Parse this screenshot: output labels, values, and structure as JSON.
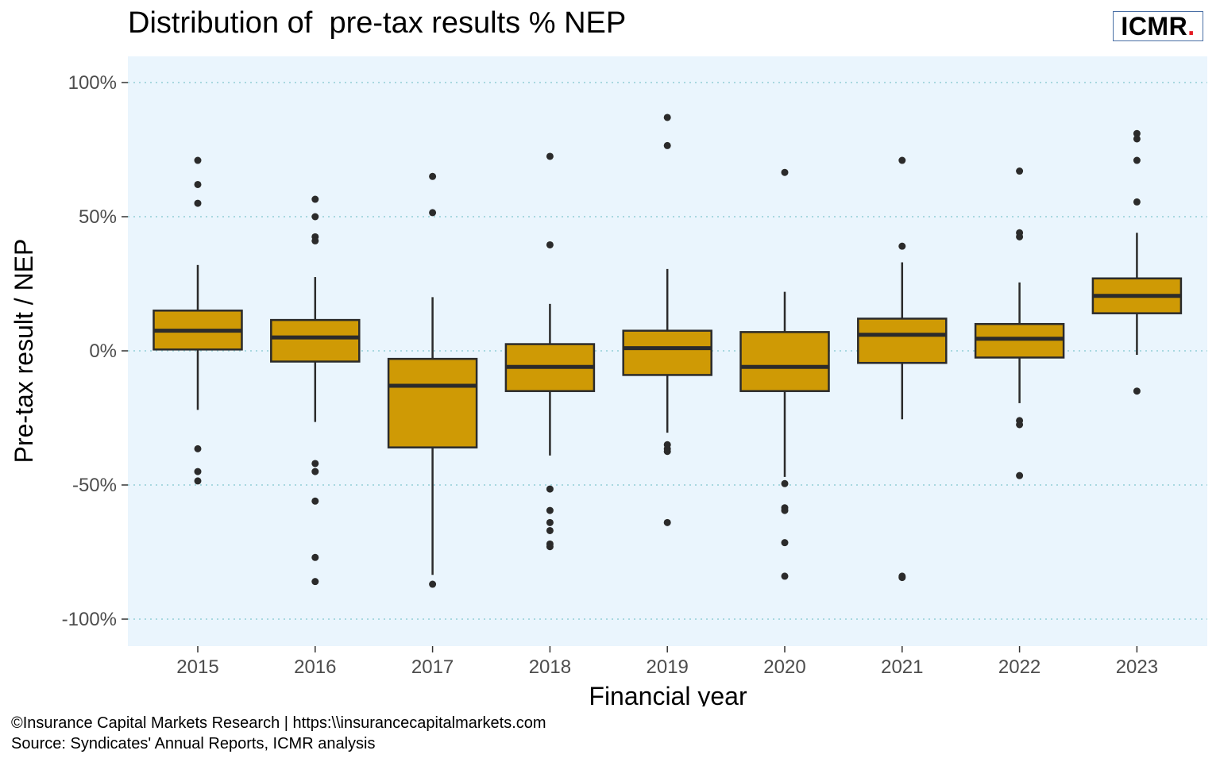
{
  "title": "Distribution of  pre-tax results % NEP",
  "logo": {
    "text": "ICMR",
    "dot": "."
  },
  "footer": {
    "line1": "©Insurance Capital Markets Research | https:\\\\insurancecapitalmarkets.com",
    "line2": "Source: Syndicates' Annual Reports, ICMR analysis"
  },
  "colors": {
    "panel": "#eaf5fd",
    "grid": "#a8d8e0",
    "box_fill": "#cf9a05",
    "box_stroke": "#2b2b2b",
    "logo_dot": "#e31b23"
  },
  "chart_data": {
    "type": "boxplot",
    "xlabel": "Financial year",
    "ylabel": "Pre-tax result / NEP",
    "ylim": [
      -110,
      110
    ],
    "yticks": [
      -100,
      -50,
      0,
      50,
      100
    ],
    "ytick_labels": [
      "-100%",
      "-50%",
      "0%",
      "50%",
      "100%"
    ],
    "grid": "horizontal dotted",
    "categories": [
      "2015",
      "2016",
      "2017",
      "2018",
      "2019",
      "2020",
      "2021",
      "2022",
      "2023"
    ],
    "boxes": [
      {
        "year": "2015",
        "whisker_low": -22,
        "q1": 0.5,
        "median": 7.5,
        "q3": 15,
        "whisker_high": 32,
        "outliers": [
          71,
          62,
          55,
          -36.5,
          -45,
          -48.5
        ]
      },
      {
        "year": "2016",
        "whisker_low": -26.5,
        "q1": -4,
        "median": 5,
        "q3": 11.5,
        "whisker_high": 27.5,
        "outliers": [
          56.5,
          50,
          42.5,
          41,
          -42,
          -45,
          -56,
          -77,
          -86
        ]
      },
      {
        "year": "2017",
        "whisker_low": -83.5,
        "q1": -36,
        "median": -13,
        "q3": -3,
        "whisker_high": 20,
        "outliers": [
          65,
          51.5,
          -87
        ]
      },
      {
        "year": "2018",
        "whisker_low": -39,
        "q1": -15,
        "median": -6,
        "q3": 2.5,
        "whisker_high": 17.5,
        "outliers": [
          72.5,
          39.5,
          -51.5,
          -59.5,
          -64,
          -67,
          -72,
          -73
        ]
      },
      {
        "year": "2019",
        "whisker_low": -30.5,
        "q1": -9,
        "median": 1,
        "q3": 7.5,
        "whisker_high": 30.5,
        "outliers": [
          87,
          76.5,
          -35,
          -36.5,
          -37.5,
          -64
        ]
      },
      {
        "year": "2020",
        "whisker_low": -47,
        "q1": -15,
        "median": -6,
        "q3": 7,
        "whisker_high": 22,
        "outliers": [
          66.5,
          -49.5,
          -58.5,
          -59.5,
          -71.5,
          -84
        ]
      },
      {
        "year": "2021",
        "whisker_low": -25.5,
        "q1": -4.5,
        "median": 6,
        "q3": 12,
        "whisker_high": 33,
        "outliers": [
          71,
          39,
          -84,
          -84.5
        ]
      },
      {
        "year": "2022",
        "whisker_low": -19.5,
        "q1": -2.5,
        "median": 4.5,
        "q3": 10,
        "whisker_high": 25.5,
        "outliers": [
          67,
          44,
          42.5,
          -26,
          -27.5,
          -46.5
        ]
      },
      {
        "year": "2023",
        "whisker_low": -1.5,
        "q1": 14,
        "median": 20.5,
        "q3": 27,
        "whisker_high": 44,
        "outliers": [
          81,
          79,
          71,
          55.5,
          -15
        ]
      }
    ]
  }
}
